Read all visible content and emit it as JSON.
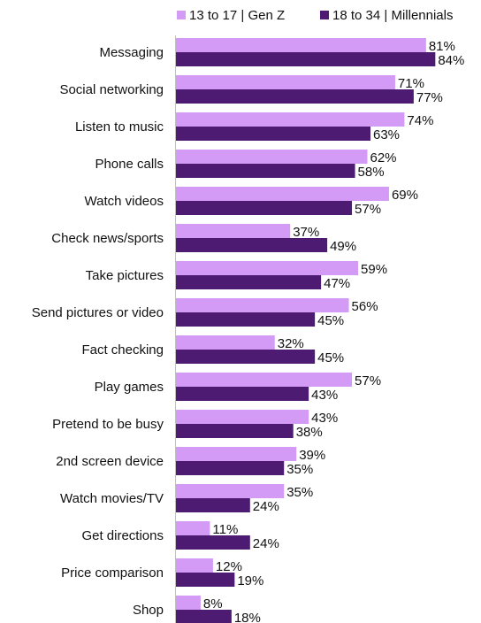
{
  "chart_data": {
    "type": "bar",
    "orientation": "horizontal",
    "categories": [
      "Messaging",
      "Social networking",
      "Listen to music",
      "Phone calls",
      "Watch videos",
      "Check news/sports",
      "Take pictures",
      "Send pictures or video",
      "Fact checking",
      "Play games",
      "Pretend to be busy",
      "2nd screen device",
      "Watch movies/TV",
      "Get directions",
      "Price comparison",
      "Shop"
    ],
    "series": [
      {
        "name": "13 to 17 | Gen Z",
        "color": "#d39bf5",
        "values": [
          81,
          71,
          74,
          62,
          69,
          37,
          59,
          56,
          32,
          57,
          43,
          39,
          35,
          11,
          12,
          8
        ],
        "labels": [
          "81%",
          "71%",
          "74%",
          "62%",
          "69%",
          "37%",
          "59%",
          "56%",
          "32%",
          "57%",
          "43%",
          "39%",
          "35%",
          "11%",
          "12%",
          "8%"
        ]
      },
      {
        "name": "18 to 34 | Millennials",
        "color": "#4d1c72",
        "values": [
          84,
          77,
          63,
          58,
          57,
          49,
          47,
          45,
          45,
          43,
          38,
          35,
          24,
          24,
          19,
          18
        ],
        "labels": [
          "84%",
          "77%",
          "63%",
          "58%",
          "57%",
          "49%",
          "47%",
          "45%",
          "45%",
          "43%",
          "38%",
          "35%",
          "24%",
          "24%",
          "19%",
          "18%"
        ]
      }
    ],
    "xlim": [
      0,
      100
    ],
    "grid": false,
    "legend": "top"
  }
}
